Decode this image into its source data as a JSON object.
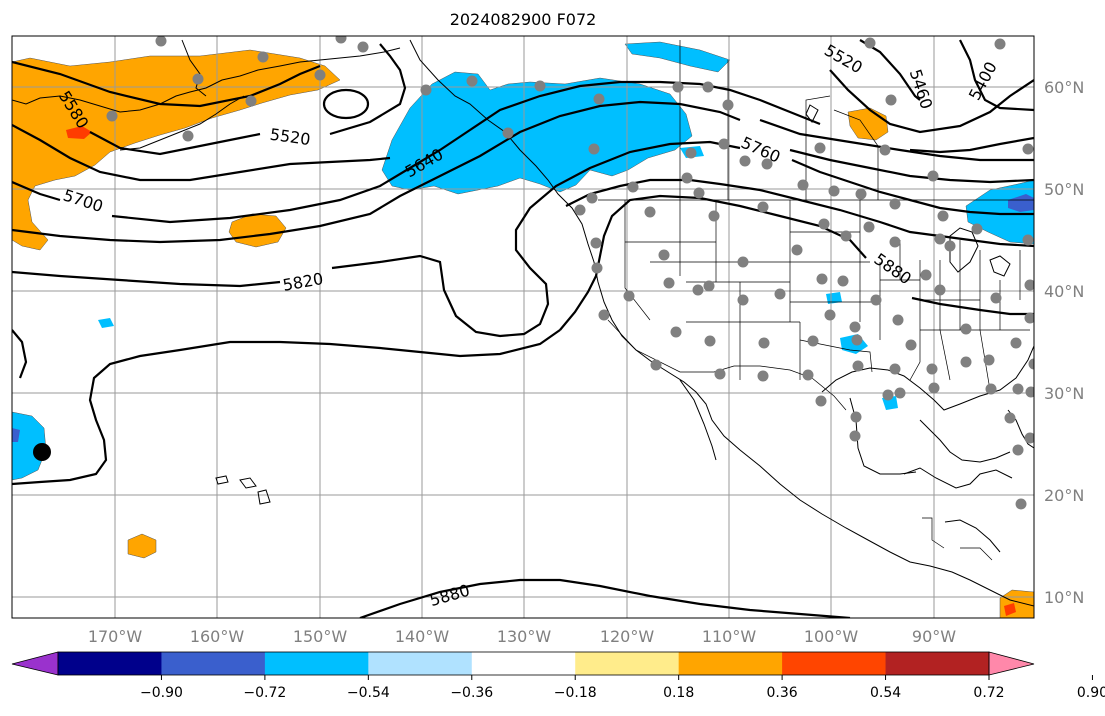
{
  "title": "2024082900 F072",
  "map": {
    "lon_labels": [
      "170°W",
      "160°W",
      "150°W",
      "140°W",
      "130°W",
      "120°W",
      "110°W",
      "100°W",
      "90°W"
    ],
    "lat_labels": [
      "60°N",
      "50°N",
      "40°N",
      "30°N",
      "20°N",
      "10°N"
    ],
    "contour_labels": [
      "5580",
      "5520",
      "5640",
      "5700",
      "5820",
      "5760",
      "5520",
      "5460",
      "5400",
      "5880",
      "5880"
    ],
    "colors": {
      "blue": "#00bfff",
      "orange": "#ffa500",
      "red": "#ff3c00",
      "dot": "#808080",
      "contour": "#000000"
    }
  },
  "colorbar": {
    "ticks": [
      "−0.90",
      "−0.72",
      "−0.54",
      "−0.36",
      "−0.18",
      "0.18",
      "0.36",
      "0.54",
      "0.72",
      "0.90"
    ],
    "colors": [
      "#9a32cd",
      "#00008b",
      "#3a5fcd",
      "#00bfff",
      "#b0e2ff",
      "#ffffff",
      "#ffec8b",
      "#ffa500",
      "#ff4500",
      "#b22222",
      "#ff88aa"
    ]
  }
}
